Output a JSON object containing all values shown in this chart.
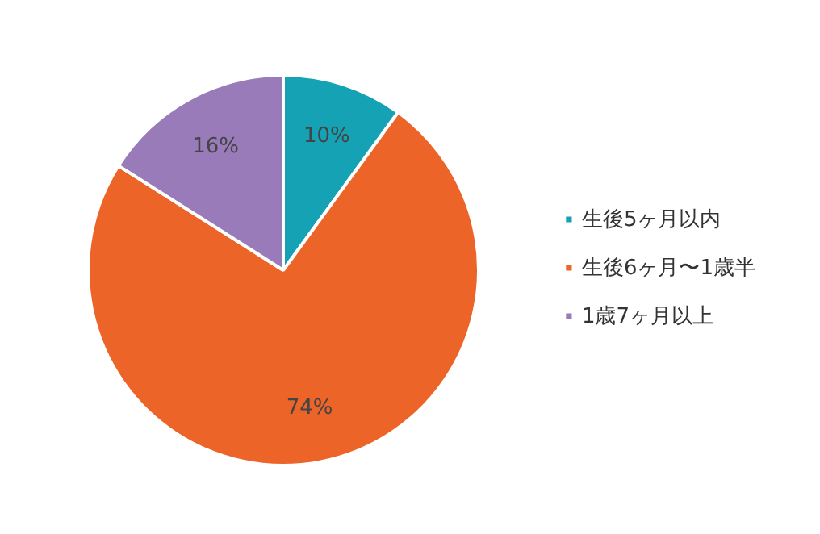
{
  "chart_data": {
    "type": "pie",
    "categories": [
      "生後5ヶ月以内",
      "生後6ヶ月〜1歳半",
      "1歳7ヶ月以上"
    ],
    "values": [
      10,
      74,
      16
    ],
    "colors": [
      "#16a2b5",
      "#ec6428",
      "#9a7bb9"
    ],
    "value_labels": [
      "10%",
      "74%",
      "16%"
    ],
    "legend": "right"
  }
}
